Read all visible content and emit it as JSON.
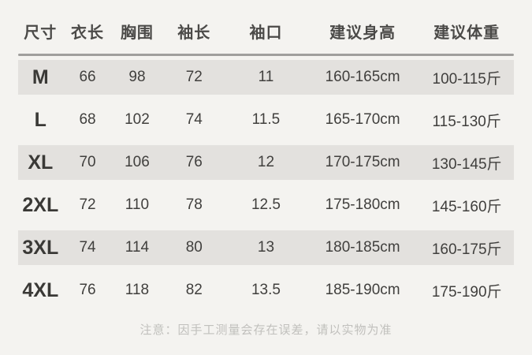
{
  "table": {
    "headers": [
      {
        "label": "尺寸"
      },
      {
        "label": "衣长"
      },
      {
        "label": "胸围"
      },
      {
        "label": "袖长"
      },
      {
        "label": "袖口"
      },
      {
        "label": "建议身高"
      },
      {
        "label": "建议体重"
      }
    ],
    "rows": [
      {
        "size": "M",
        "length": "66",
        "chest": "98",
        "sleeve": "72",
        "cuff": "11",
        "height": "160-165cm",
        "weight": "100-115斤"
      },
      {
        "size": "L",
        "length": "68",
        "chest": "102",
        "sleeve": "74",
        "cuff": "11.5",
        "height": "165-170cm",
        "weight": "115-130斤"
      },
      {
        "size": "XL",
        "length": "70",
        "chest": "106",
        "sleeve": "76",
        "cuff": "12",
        "height": "170-175cm",
        "weight": "130-145斤"
      },
      {
        "size": "2XL",
        "length": "72",
        "chest": "110",
        "sleeve": "78",
        "cuff": "12.5",
        "height": "175-180cm",
        "weight": "145-160斤"
      },
      {
        "size": "3XL",
        "length": "74",
        "chest": "114",
        "sleeve": "80",
        "cuff": "13",
        "height": "180-185cm",
        "weight": "160-175斤"
      },
      {
        "size": "4XL",
        "length": "76",
        "chest": "118",
        "sleeve": "82",
        "cuff": "13.5",
        "height": "185-190cm",
        "weight": "175-190斤"
      }
    ]
  },
  "footer": {
    "note": "注意：因手工测量会存在误差，请以实物为准"
  },
  "colors": {
    "background": "#f4f3f0",
    "row_shade": "#e3e1de",
    "divider": "#a09f9d",
    "header_text": "#4b4a48",
    "data_text": "#403f3d",
    "size_text": "#3a3936",
    "footer_text": "#c1c0bd"
  }
}
